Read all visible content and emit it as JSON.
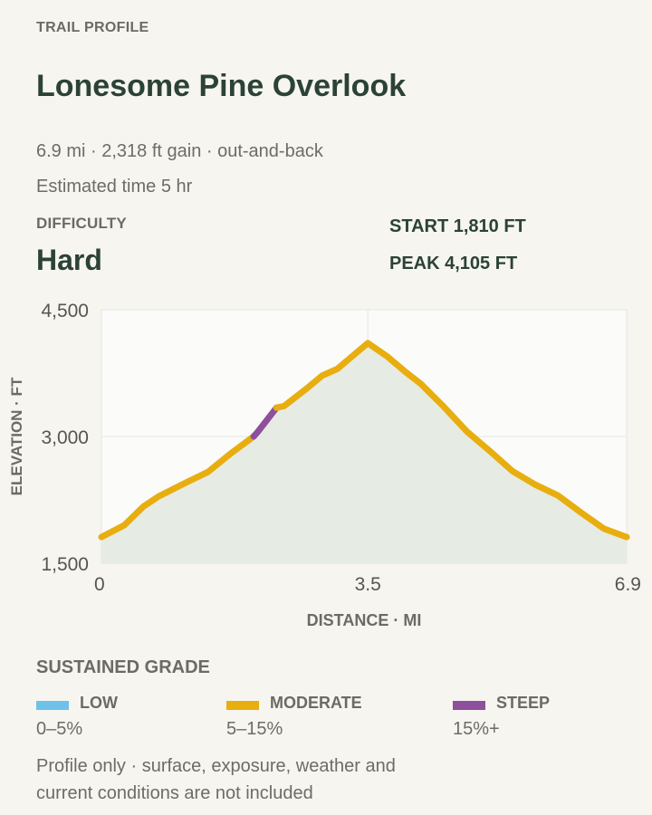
{
  "eyebrow": "TRAIL PROFILE",
  "title": "Lonesome Pine Overlook",
  "meta_line": "6.9 mi · 2,318 ft gain · out-and-back",
  "time_line": "Estimated time 5 hr",
  "difficulty": {
    "label": "DIFFICULTY",
    "value": "Hard"
  },
  "stats": {
    "start": "START 1,810 FT",
    "peak": "PEAK 4,105 FT"
  },
  "colors": {
    "low": "#6ec1e8",
    "moderate": "#e8ae10",
    "steep": "#8e4f9c",
    "fill": "#e6ece4",
    "plot_bg": "#fbfbf9",
    "grid": "#e6e6e2"
  },
  "legend": {
    "title": "SUSTAINED GRADE",
    "items": [
      {
        "name": "LOW",
        "range": "0–5%",
        "color": "#6ec1e8"
      },
      {
        "name": "MODERATE",
        "range": "5–15%",
        "color": "#e8ae10"
      },
      {
        "name": "STEEP",
        "range": "15%+",
        "color": "#8e4f9c"
      }
    ]
  },
  "footnote": [
    "Profile only · surface, exposure, weather and",
    "current conditions are not included"
  ],
  "chart_data": {
    "type": "area",
    "title": "",
    "xlabel": "DISTANCE · MI",
    "ylabel": "ELEVATION · FT",
    "xlim": [
      0,
      6.9
    ],
    "ylim": [
      1500,
      4500
    ],
    "x_ticks": [
      0,
      3.5,
      6.9
    ],
    "x_tick_labels": [
      "0",
      "3.5",
      "6.9"
    ],
    "y_ticks": [
      1500,
      3000,
      4500
    ],
    "y_tick_labels": [
      "1,500",
      "3,000",
      "4,500"
    ],
    "grid": true,
    "series": [
      {
        "points": [
          [
            0,
            1810
          ],
          [
            0.3,
            1950
          ],
          [
            0.55,
            2170
          ],
          [
            0.75,
            2290
          ],
          [
            1.1,
            2450
          ],
          [
            1.4,
            2580
          ],
          [
            1.7,
            2800
          ],
          [
            2.0,
            3000
          ],
          [
            2.05,
            3050
          ],
          [
            2.3,
            3340
          ],
          [
            2.4,
            3360
          ],
          [
            2.7,
            3570
          ],
          [
            2.9,
            3720
          ],
          [
            3.1,
            3800
          ],
          [
            3.5,
            4105
          ],
          [
            3.75,
            3950
          ],
          [
            4.0,
            3760
          ],
          [
            4.2,
            3620
          ],
          [
            4.5,
            3350
          ],
          [
            4.8,
            3060
          ],
          [
            5.1,
            2830
          ],
          [
            5.4,
            2590
          ],
          [
            5.7,
            2430
          ],
          [
            6.0,
            2300
          ],
          [
            6.3,
            2100
          ],
          [
            6.6,
            1910
          ],
          [
            6.9,
            1810
          ]
        ],
        "grade_segments": [
          {
            "from": 0,
            "to": 2.0,
            "grade": "moderate"
          },
          {
            "from": 2.0,
            "to": 2.3,
            "grade": "steep"
          },
          {
            "from": 2.3,
            "to": 6.9,
            "grade": "moderate"
          }
        ]
      }
    ]
  }
}
